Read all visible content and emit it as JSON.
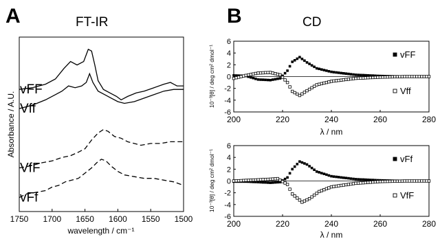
{
  "panels": [
    {
      "letter": "A",
      "title": "FT-IR"
    },
    {
      "letter": "B",
      "title": "CD"
    }
  ],
  "chart_data": [
    {
      "type": "line",
      "title": "FT-IR",
      "xlabel": "wavelength / cm⁻¹",
      "ylabel": "Absorbance / A.U.",
      "xlim": [
        1750,
        1500
      ],
      "x_reversed": true,
      "xticks": [
        1750,
        1700,
        1650,
        1600,
        1550,
        1500
      ],
      "yrange_relative": [
        0,
        1
      ],
      "grid": false,
      "series": [
        {
          "name": "vFF",
          "style": "solid",
          "points": [
            [
              1750,
              0.7
            ],
            [
              1730,
              0.71
            ],
            [
              1710,
              0.73
            ],
            [
              1695,
              0.76
            ],
            [
              1682,
              0.82
            ],
            [
              1672,
              0.86
            ],
            [
              1662,
              0.84
            ],
            [
              1652,
              0.86
            ],
            [
              1645,
              0.93
            ],
            [
              1640,
              0.92
            ],
            [
              1635,
              0.84
            ],
            [
              1630,
              0.75
            ],
            [
              1622,
              0.7
            ],
            [
              1612,
              0.68
            ],
            [
              1602,
              0.66
            ],
            [
              1595,
              0.64
            ],
            [
              1585,
              0.66
            ],
            [
              1572,
              0.68
            ],
            [
              1560,
              0.69
            ],
            [
              1545,
              0.71
            ],
            [
              1530,
              0.73
            ],
            [
              1520,
              0.74
            ],
            [
              1510,
              0.72
            ],
            [
              1500,
              0.72
            ]
          ]
        },
        {
          "name": "Vff",
          "style": "solid",
          "points": [
            [
              1750,
              0.59
            ],
            [
              1730,
              0.61
            ],
            [
              1710,
              0.64
            ],
            [
              1695,
              0.67
            ],
            [
              1685,
              0.69
            ],
            [
              1675,
              0.72
            ],
            [
              1665,
              0.71
            ],
            [
              1655,
              0.72
            ],
            [
              1648,
              0.74
            ],
            [
              1643,
              0.79
            ],
            [
              1638,
              0.74
            ],
            [
              1630,
              0.69
            ],
            [
              1620,
              0.67
            ],
            [
              1610,
              0.65
            ],
            [
              1600,
              0.63
            ],
            [
              1590,
              0.62
            ],
            [
              1575,
              0.63
            ],
            [
              1560,
              0.65
            ],
            [
              1545,
              0.67
            ],
            [
              1530,
              0.69
            ],
            [
              1515,
              0.7
            ],
            [
              1500,
              0.7
            ]
          ]
        },
        {
          "name": "VfF",
          "style": "dashed",
          "points": [
            [
              1750,
              0.25
            ],
            [
              1735,
              0.26
            ],
            [
              1715,
              0.28
            ],
            [
              1700,
              0.29
            ],
            [
              1685,
              0.31
            ],
            [
              1672,
              0.32
            ],
            [
              1660,
              0.34
            ],
            [
              1650,
              0.36
            ],
            [
              1640,
              0.41
            ],
            [
              1630,
              0.45
            ],
            [
              1622,
              0.47
            ],
            [
              1615,
              0.46
            ],
            [
              1605,
              0.43
            ],
            [
              1595,
              0.42
            ],
            [
              1585,
              0.4
            ],
            [
              1575,
              0.39
            ],
            [
              1565,
              0.38
            ],
            [
              1550,
              0.39
            ],
            [
              1535,
              0.39
            ],
            [
              1520,
              0.4
            ],
            [
              1505,
              0.4
            ],
            [
              1500,
              0.4
            ]
          ]
        },
        {
          "name": "vFf",
          "style": "dashed",
          "points": [
            [
              1750,
              0.08
            ],
            [
              1740,
              0.1
            ],
            [
              1725,
              0.11
            ],
            [
              1710,
              0.12
            ],
            [
              1700,
              0.14
            ],
            [
              1690,
              0.15
            ],
            [
              1680,
              0.17
            ],
            [
              1670,
              0.18
            ],
            [
              1660,
              0.19
            ],
            [
              1650,
              0.22
            ],
            [
              1640,
              0.25
            ],
            [
              1632,
              0.28
            ],
            [
              1625,
              0.3
            ],
            [
              1618,
              0.29
            ],
            [
              1610,
              0.26
            ],
            [
              1600,
              0.23
            ],
            [
              1590,
              0.21
            ],
            [
              1575,
              0.2
            ],
            [
              1560,
              0.19
            ],
            [
              1545,
              0.19
            ],
            [
              1530,
              0.18
            ],
            [
              1515,
              0.17
            ],
            [
              1500,
              0.15
            ]
          ]
        }
      ]
    },
    {
      "type": "scatter",
      "title": "CD",
      "xlabel": "λ / nm",
      "ylabel": "10⁻³[θ] / deg cm² dmol⁻¹",
      "xlim": [
        200,
        280
      ],
      "ylim": [
        -6,
        6
      ],
      "xticks": [
        200,
        220,
        240,
        260,
        280
      ],
      "yticks": [
        6,
        4,
        2,
        0,
        -2,
        -4,
        -6
      ],
      "grid": false,
      "series": [
        {
          "name": "vFF",
          "marker": "filled-square",
          "points": [
            [
              200,
              0.2
            ],
            [
              205,
              0.1
            ],
            [
              210,
              -0.5
            ],
            [
              215,
              -0.6
            ],
            [
              219,
              -0.3
            ],
            [
              222,
              1.0
            ],
            [
              224,
              2.5
            ],
            [
              227,
              3.3
            ],
            [
              230,
              2.4
            ],
            [
              234,
              1.4
            ],
            [
              240,
              0.8
            ],
            [
              250,
              0.3
            ],
            [
              260,
              0.1
            ],
            [
              270,
              0.0
            ],
            [
              280,
              0.0
            ]
          ]
        },
        {
          "name": "Vff",
          "marker": "open-square",
          "points": [
            [
              200,
              -0.3
            ],
            [
              205,
              0.2
            ],
            [
              210,
              0.6
            ],
            [
              215,
              0.7
            ],
            [
              219,
              0.3
            ],
            [
              222,
              -1.0
            ],
            [
              224,
              -2.5
            ],
            [
              227,
              -3.2
            ],
            [
              230,
              -2.4
            ],
            [
              234,
              -1.4
            ],
            [
              240,
              -0.8
            ],
            [
              250,
              -0.3
            ],
            [
              260,
              -0.1
            ],
            [
              270,
              0.0
            ],
            [
              280,
              0.0
            ]
          ]
        }
      ]
    },
    {
      "type": "scatter",
      "title": "",
      "xlabel": "λ / nm",
      "ylabel": "10⁻³[θ] / deg cm² dmol⁻¹",
      "xlim": [
        200,
        280
      ],
      "ylim": [
        -6,
        6
      ],
      "xticks": [
        200,
        220,
        240,
        260,
        280
      ],
      "yticks": [
        6,
        4,
        2,
        0,
        -2,
        -4,
        -6
      ],
      "grid": false,
      "series": [
        {
          "name": "vFf",
          "marker": "filled-square",
          "points": [
            [
              200,
              -0.1
            ],
            [
              205,
              -0.1
            ],
            [
              210,
              -0.2
            ],
            [
              215,
              -0.3
            ],
            [
              219,
              -0.2
            ],
            [
              222,
              0.6
            ],
            [
              224,
              2.0
            ],
            [
              227,
              3.3
            ],
            [
              230,
              2.8
            ],
            [
              234,
              1.6
            ],
            [
              240,
              0.8
            ],
            [
              250,
              0.3
            ],
            [
              260,
              0.1
            ],
            [
              270,
              0.0
            ],
            [
              280,
              0.0
            ]
          ]
        },
        {
          "name": "VfF",
          "marker": "open-square",
          "points": [
            [
              200,
              0.0
            ],
            [
              205,
              0.1
            ],
            [
              210,
              0.2
            ],
            [
              215,
              0.3
            ],
            [
              218,
              0.4
            ],
            [
              222,
              -0.6
            ],
            [
              224,
              -2.2
            ],
            [
              228,
              -3.6
            ],
            [
              231,
              -3.0
            ],
            [
              235,
              -1.8
            ],
            [
              240,
              -1.0
            ],
            [
              250,
              -0.4
            ],
            [
              260,
              -0.1
            ],
            [
              270,
              0.0
            ],
            [
              280,
              0.0
            ]
          ]
        }
      ]
    }
  ]
}
